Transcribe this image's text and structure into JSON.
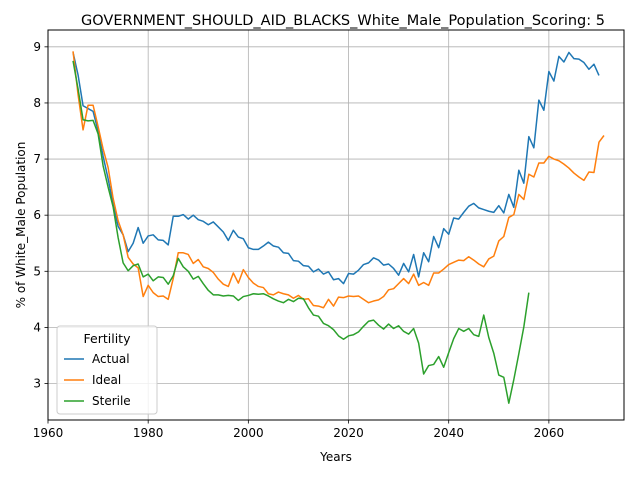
{
  "chart_data": {
    "type": "line",
    "title": "GOVERNMENT_SHOULD_AID_BLACKS_White_Male_Population_Scoring: 5",
    "xlabel": "Years",
    "ylabel": "% of White_Male Population",
    "xlim": [
      1960,
      2075
    ],
    "ylim": [
      2.35,
      9.3
    ],
    "xticks": [
      1960,
      1980,
      2000,
      2020,
      2040,
      2060
    ],
    "yticks": [
      3,
      4,
      5,
      6,
      7,
      8,
      9
    ],
    "grid": true,
    "legend": {
      "title": "Fertility",
      "placement": "bottom-left"
    },
    "series": [
      {
        "name": "Actual",
        "color": "#1f77b4",
        "points": [
          [
            1965,
            8.9
          ],
          [
            1966,
            8.5
          ],
          [
            1967,
            7.95
          ],
          [
            1968,
            7.9
          ],
          [
            1969,
            7.85
          ],
          [
            1970,
            7.5
          ],
          [
            1971,
            7.05
          ],
          [
            1972,
            6.65
          ],
          [
            1973,
            6.2
          ],
          [
            1974,
            5.8
          ],
          [
            1975,
            5.65
          ],
          [
            1976,
            5.35
          ],
          [
            1977,
            5.5
          ],
          [
            1978,
            5.78
          ],
          [
            1979,
            5.5
          ],
          [
            1980,
            5.63
          ],
          [
            1981,
            5.65
          ],
          [
            1982,
            5.56
          ],
          [
            1983,
            5.55
          ],
          [
            1984,
            5.47
          ],
          [
            1985,
            5.98
          ],
          [
            1986,
            5.98
          ],
          [
            1987,
            6.01
          ],
          [
            1988,
            5.93
          ],
          [
            1989,
            6.0
          ],
          [
            1990,
            5.92
          ],
          [
            1991,
            5.89
          ],
          [
            1992,
            5.83
          ],
          [
            1993,
            5.88
          ],
          [
            1994,
            5.79
          ],
          [
            1995,
            5.7
          ],
          [
            1996,
            5.55
          ],
          [
            1997,
            5.73
          ],
          [
            1998,
            5.61
          ],
          [
            1999,
            5.58
          ],
          [
            2000,
            5.42
          ],
          [
            2001,
            5.39
          ],
          [
            2002,
            5.39
          ],
          [
            2003,
            5.45
          ],
          [
            2004,
            5.52
          ],
          [
            2005,
            5.45
          ],
          [
            2006,
            5.43
          ],
          [
            2007,
            5.33
          ],
          [
            2008,
            5.32
          ],
          [
            2009,
            5.19
          ],
          [
            2010,
            5.18
          ],
          [
            2011,
            5.1
          ],
          [
            2012,
            5.09
          ],
          [
            2013,
            4.99
          ],
          [
            2014,
            5.04
          ],
          [
            2015,
            4.95
          ],
          [
            2016,
            4.99
          ],
          [
            2017,
            4.85
          ],
          [
            2018,
            4.87
          ],
          [
            2019,
            4.78
          ],
          [
            2020,
            4.96
          ],
          [
            2021,
            4.95
          ],
          [
            2022,
            5.02
          ],
          [
            2023,
            5.12
          ],
          [
            2024,
            5.15
          ],
          [
            2025,
            5.24
          ],
          [
            2026,
            5.2
          ],
          [
            2027,
            5.11
          ],
          [
            2028,
            5.13
          ],
          [
            2029,
            5.05
          ],
          [
            2030,
            4.93
          ],
          [
            2031,
            5.14
          ],
          [
            2032,
            4.99
          ],
          [
            2033,
            5.3
          ],
          [
            2034,
            4.9
          ],
          [
            2035,
            5.33
          ],
          [
            2036,
            5.17
          ],
          [
            2037,
            5.62
          ],
          [
            2038,
            5.42
          ],
          [
            2039,
            5.76
          ],
          [
            2040,
            5.66
          ],
          [
            2041,
            5.95
          ],
          [
            2042,
            5.93
          ],
          [
            2043,
            6.05
          ],
          [
            2044,
            6.16
          ],
          [
            2045,
            6.21
          ],
          [
            2046,
            6.13
          ],
          [
            2047,
            6.1
          ],
          [
            2048,
            6.07
          ],
          [
            2049,
            6.05
          ],
          [
            2050,
            6.17
          ],
          [
            2051,
            6.04
          ],
          [
            2052,
            6.37
          ],
          [
            2053,
            6.14
          ],
          [
            2054,
            6.8
          ],
          [
            2055,
            6.57
          ],
          [
            2056,
            7.4
          ],
          [
            2057,
            7.2
          ],
          [
            2058,
            8.05
          ],
          [
            2059,
            7.87
          ],
          [
            2060,
            8.56
          ],
          [
            2061,
            8.39
          ],
          [
            2062,
            8.83
          ],
          [
            2063,
            8.73
          ],
          [
            2064,
            8.9
          ],
          [
            2065,
            8.79
          ],
          [
            2066,
            8.78
          ],
          [
            2067,
            8.72
          ],
          [
            2068,
            8.6
          ],
          [
            2069,
            8.69
          ],
          [
            2070,
            8.49
          ]
        ]
      },
      {
        "name": "Ideal",
        "color": "#ff7f0e",
        "points": [
          [
            1965,
            8.92
          ],
          [
            1966,
            8.15
          ],
          [
            1967,
            7.52
          ],
          [
            1968,
            7.96
          ],
          [
            1969,
            7.96
          ],
          [
            1970,
            7.58
          ],
          [
            1971,
            7.18
          ],
          [
            1972,
            6.85
          ],
          [
            1973,
            6.3
          ],
          [
            1974,
            5.9
          ],
          [
            1975,
            5.65
          ],
          [
            1976,
            5.25
          ],
          [
            1977,
            5.13
          ],
          [
            1978,
            5.06
          ],
          [
            1979,
            4.55
          ],
          [
            1980,
            4.75
          ],
          [
            1981,
            4.62
          ],
          [
            1982,
            4.55
          ],
          [
            1983,
            4.56
          ],
          [
            1984,
            4.5
          ],
          [
            1985,
            4.87
          ],
          [
            1986,
            5.33
          ],
          [
            1987,
            5.33
          ],
          [
            1988,
            5.3
          ],
          [
            1989,
            5.14
          ],
          [
            1990,
            5.21
          ],
          [
            1991,
            5.08
          ],
          [
            1992,
            5.05
          ],
          [
            1993,
            4.98
          ],
          [
            1994,
            4.86
          ],
          [
            1995,
            4.77
          ],
          [
            1996,
            4.73
          ],
          [
            1997,
            4.97
          ],
          [
            1998,
            4.79
          ],
          [
            1999,
            5.03
          ],
          [
            2000,
            4.89
          ],
          [
            2001,
            4.79
          ],
          [
            2002,
            4.73
          ],
          [
            2003,
            4.71
          ],
          [
            2004,
            4.6
          ],
          [
            2005,
            4.58
          ],
          [
            2006,
            4.63
          ],
          [
            2007,
            4.6
          ],
          [
            2008,
            4.58
          ],
          [
            2009,
            4.52
          ],
          [
            2010,
            4.57
          ],
          [
            2011,
            4.5
          ],
          [
            2012,
            4.51
          ],
          [
            2013,
            4.39
          ],
          [
            2014,
            4.38
          ],
          [
            2015,
            4.35
          ],
          [
            2016,
            4.5
          ],
          [
            2017,
            4.38
          ],
          [
            2018,
            4.54
          ],
          [
            2019,
            4.53
          ],
          [
            2020,
            4.56
          ],
          [
            2021,
            4.55
          ],
          [
            2022,
            4.56
          ],
          [
            2023,
            4.5
          ],
          [
            2024,
            4.44
          ],
          [
            2025,
            4.47
          ],
          [
            2026,
            4.49
          ],
          [
            2027,
            4.55
          ],
          [
            2028,
            4.67
          ],
          [
            2029,
            4.69
          ],
          [
            2030,
            4.78
          ],
          [
            2031,
            4.87
          ],
          [
            2032,
            4.78
          ],
          [
            2033,
            4.95
          ],
          [
            2034,
            4.75
          ],
          [
            2035,
            4.8
          ],
          [
            2036,
            4.75
          ],
          [
            2037,
            4.97
          ],
          [
            2038,
            4.97
          ],
          [
            2039,
            5.04
          ],
          [
            2040,
            5.12
          ],
          [
            2041,
            5.16
          ],
          [
            2042,
            5.2
          ],
          [
            2043,
            5.19
          ],
          [
            2044,
            5.26
          ],
          [
            2045,
            5.2
          ],
          [
            2046,
            5.13
          ],
          [
            2047,
            5.08
          ],
          [
            2048,
            5.22
          ],
          [
            2049,
            5.27
          ],
          [
            2050,
            5.54
          ],
          [
            2051,
            5.62
          ],
          [
            2052,
            5.96
          ],
          [
            2053,
            6.01
          ],
          [
            2054,
            6.37
          ],
          [
            2055,
            6.28
          ],
          [
            2056,
            6.73
          ],
          [
            2057,
            6.68
          ],
          [
            2058,
            6.93
          ],
          [
            2059,
            6.93
          ],
          [
            2060,
            7.05
          ],
          [
            2061,
            7.0
          ],
          [
            2062,
            6.97
          ],
          [
            2063,
            6.91
          ],
          [
            2064,
            6.84
          ],
          [
            2065,
            6.75
          ],
          [
            2066,
            6.68
          ],
          [
            2067,
            6.62
          ],
          [
            2068,
            6.77
          ],
          [
            2069,
            6.76
          ],
          [
            2070,
            7.3
          ],
          [
            2071,
            7.42
          ]
        ]
      },
      {
        "name": "Sterile",
        "color": "#2ca02c",
        "points": [
          [
            1965,
            8.75
          ],
          [
            1966,
            8.25
          ],
          [
            1967,
            7.7
          ],
          [
            1968,
            7.68
          ],
          [
            1969,
            7.69
          ],
          [
            1970,
            7.45
          ],
          [
            1971,
            6.88
          ],
          [
            1972,
            6.5
          ],
          [
            1973,
            6.15
          ],
          [
            1974,
            5.6
          ],
          [
            1975,
            5.15
          ],
          [
            1976,
            5.01
          ],
          [
            1977,
            5.1
          ],
          [
            1978,
            5.13
          ],
          [
            1979,
            4.9
          ],
          [
            1980,
            4.95
          ],
          [
            1981,
            4.83
          ],
          [
            1982,
            4.9
          ],
          [
            1983,
            4.89
          ],
          [
            1984,
            4.77
          ],
          [
            1985,
            4.92
          ],
          [
            1986,
            5.23
          ],
          [
            1987,
            5.08
          ],
          [
            1988,
            5.0
          ],
          [
            1989,
            4.86
          ],
          [
            1990,
            4.91
          ],
          [
            1991,
            4.78
          ],
          [
            1992,
            4.66
          ],
          [
            1993,
            4.58
          ],
          [
            1994,
            4.58
          ],
          [
            1995,
            4.56
          ],
          [
            1996,
            4.57
          ],
          [
            1997,
            4.56
          ],
          [
            1998,
            4.48
          ],
          [
            1999,
            4.55
          ],
          [
            2000,
            4.57
          ],
          [
            2001,
            4.6
          ],
          [
            2002,
            4.59
          ],
          [
            2003,
            4.6
          ],
          [
            2004,
            4.56
          ],
          [
            2005,
            4.51
          ],
          [
            2006,
            4.47
          ],
          [
            2007,
            4.44
          ],
          [
            2008,
            4.5
          ],
          [
            2009,
            4.46
          ],
          [
            2010,
            4.52
          ],
          [
            2011,
            4.51
          ],
          [
            2012,
            4.35
          ],
          [
            2013,
            4.22
          ],
          [
            2014,
            4.2
          ],
          [
            2015,
            4.07
          ],
          [
            2016,
            4.03
          ],
          [
            2017,
            3.96
          ],
          [
            2018,
            3.85
          ],
          [
            2019,
            3.79
          ],
          [
            2020,
            3.85
          ],
          [
            2021,
            3.87
          ],
          [
            2022,
            3.92
          ],
          [
            2023,
            4.02
          ],
          [
            2024,
            4.11
          ],
          [
            2025,
            4.13
          ],
          [
            2026,
            4.04
          ],
          [
            2027,
            3.97
          ],
          [
            2028,
            4.06
          ],
          [
            2029,
            3.98
          ],
          [
            2030,
            4.03
          ],
          [
            2031,
            3.93
          ],
          [
            2032,
            3.88
          ],
          [
            2033,
            3.98
          ],
          [
            2034,
            3.72
          ],
          [
            2035,
            3.17
          ],
          [
            2036,
            3.32
          ],
          [
            2037,
            3.34
          ],
          [
            2038,
            3.48
          ],
          [
            2039,
            3.29
          ],
          [
            2040,
            3.55
          ],
          [
            2041,
            3.8
          ],
          [
            2042,
            3.98
          ],
          [
            2043,
            3.93
          ],
          [
            2044,
            3.98
          ],
          [
            2045,
            3.87
          ],
          [
            2046,
            3.84
          ],
          [
            2047,
            4.22
          ],
          [
            2048,
            3.82
          ],
          [
            2049,
            3.54
          ],
          [
            2050,
            3.15
          ],
          [
            2051,
            3.11
          ],
          [
            2052,
            2.65
          ],
          [
            2053,
            3.07
          ],
          [
            2054,
            3.53
          ],
          [
            2055,
            4.01
          ],
          [
            2056,
            4.62
          ]
        ]
      }
    ]
  }
}
